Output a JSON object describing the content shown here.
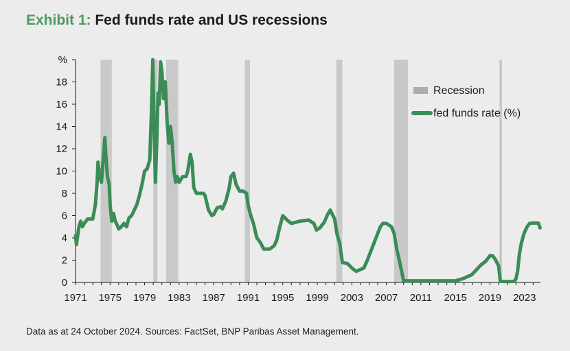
{
  "title": {
    "exhibit": "Exhibit 1:",
    "main": "Fed funds rate and US recessions"
  },
  "footnote": "Data as at 24 October 2024. Sources: FactSet, BNP Paribas Asset Management.",
  "chart_data": {
    "type": "line",
    "ylabel": "%",
    "ylim": [
      0,
      20
    ],
    "yticks": [
      "0",
      "2",
      "4",
      "6",
      "8",
      "10",
      "12",
      "14",
      "16",
      "18"
    ],
    "xlim": [
      1971.0,
      2024.85
    ],
    "xticks": [
      "1971",
      "1975",
      "1979",
      "1983",
      "1987",
      "1991",
      "1995",
      "1999",
      "2003",
      "2007",
      "2011",
      "2015",
      "2019",
      "2023"
    ],
    "grid": false,
    "legend_position": "right",
    "colors": {
      "line": "#3b8c57",
      "recession": "#c9c9c9",
      "axis": "#1a1a1a",
      "exhibit": "#4e9a63"
    },
    "legend": {
      "recession": "Recession",
      "line": "fed funds rate (%)"
    },
    "recessions": [
      [
        1973.9,
        1975.2
      ],
      [
        1980.0,
        1980.5
      ],
      [
        1981.5,
        1982.9
      ],
      [
        1990.6,
        1991.2
      ],
      [
        2001.2,
        2001.9
      ],
      [
        2007.9,
        2009.5
      ],
      [
        2020.1,
        2020.4
      ]
    ],
    "series": [
      {
        "name": "fed funds rate (%)",
        "x": [
          1971.0,
          1971.1,
          1971.4,
          1971.6,
          1971.8,
          1972.0,
          1972.4,
          1972.8,
          1973.0,
          1973.3,
          1973.5,
          1973.6,
          1973.8,
          1974.0,
          1974.2,
          1974.4,
          1974.5,
          1974.7,
          1974.9,
          1975.0,
          1975.2,
          1975.4,
          1975.6,
          1975.8,
          1976.0,
          1976.3,
          1976.6,
          1976.9,
          1977.2,
          1977.5,
          1977.8,
          1978.1,
          1978.4,
          1978.7,
          1979.0,
          1979.3,
          1979.6,
          1979.8,
          1979.95,
          1980.1,
          1980.25,
          1980.4,
          1980.55,
          1980.7,
          1980.85,
          1981.0,
          1981.2,
          1981.4,
          1981.6,
          1981.8,
          1982.0,
          1982.2,
          1982.4,
          1982.6,
          1982.8,
          1983.0,
          1983.4,
          1983.8,
          1984.0,
          1984.3,
          1984.5,
          1984.7,
          1985.0,
          1985.4,
          1985.8,
          1986.0,
          1986.4,
          1986.8,
          1987.0,
          1987.4,
          1987.8,
          1988.0,
          1988.4,
          1988.8,
          1989.0,
          1989.3,
          1989.6,
          1990.0,
          1990.4,
          1990.8,
          1991.0,
          1991.3,
          1991.6,
          1992.0,
          1992.4,
          1992.8,
          1993.5,
          1994.0,
          1994.3,
          1994.6,
          1995.0,
          1995.5,
          1996.0,
          1997.0,
          1998.0,
          1998.6,
          1998.9,
          1999.3,
          1999.8,
          2000.2,
          2000.5,
          2001.0,
          2001.3,
          2001.6,
          2001.9,
          2002.5,
          2003.0,
          2003.5,
          2004.4,
          2004.8,
          2005.3,
          2005.8,
          2006.3,
          2006.6,
          2007.0,
          2007.6,
          2007.9,
          2008.2,
          2008.5,
          2008.9,
          2009.0,
          2012.0,
          2015.0,
          2015.9,
          2016.9,
          2017.5,
          2018.0,
          2018.5,
          2019.0,
          2019.3,
          2019.6,
          2020.0,
          2020.2,
          2021.0,
          2021.8,
          2022.0,
          2022.2,
          2022.4,
          2022.6,
          2022.8,
          2023.0,
          2023.3,
          2023.6,
          2024.0,
          2024.6,
          2024.8
        ],
        "values": [
          4.2,
          3.4,
          5.0,
          5.5,
          5.0,
          5.3,
          5.7,
          5.7,
          5.7,
          7.0,
          9.0,
          10.8,
          9.5,
          9.0,
          11.0,
          13.0,
          11.5,
          9.5,
          8.8,
          7.0,
          5.5,
          6.2,
          5.5,
          5.2,
          4.8,
          5.0,
          5.3,
          5.0,
          5.8,
          6.0,
          6.5,
          7.0,
          7.8,
          8.8,
          10.0,
          10.2,
          11.0,
          15.5,
          20.0,
          14.0,
          9.0,
          12.5,
          17.0,
          16.0,
          19.8,
          19.0,
          16.5,
          18.0,
          14.5,
          12.5,
          14.0,
          12.5,
          10.0,
          9.0,
          9.5,
          9.0,
          9.5,
          9.5,
          10.0,
          11.5,
          10.8,
          8.5,
          8.0,
          8.0,
          8.0,
          7.8,
          6.5,
          6.0,
          6.1,
          6.7,
          6.8,
          6.6,
          7.3,
          8.5,
          9.5,
          9.8,
          8.8,
          8.2,
          8.2,
          8.0,
          6.9,
          6.0,
          5.3,
          4.0,
          3.6,
          3.0,
          3.0,
          3.3,
          3.8,
          4.8,
          6.0,
          5.6,
          5.3,
          5.5,
          5.6,
          5.3,
          4.7,
          4.9,
          5.4,
          6.1,
          6.5,
          5.7,
          4.3,
          3.5,
          1.8,
          1.7,
          1.3,
          1.0,
          1.3,
          2.0,
          3.0,
          4.0,
          5.0,
          5.3,
          5.3,
          5.0,
          4.4,
          3.0,
          2.0,
          0.5,
          0.15,
          0.15,
          0.15,
          0.35,
          0.7,
          1.2,
          1.6,
          1.9,
          2.4,
          2.4,
          2.1,
          1.5,
          0.1,
          0.08,
          0.1,
          0.3,
          1.0,
          2.5,
          3.4,
          4.0,
          4.5,
          5.0,
          5.3,
          5.33,
          5.33,
          4.9
        ]
      }
    ]
  }
}
